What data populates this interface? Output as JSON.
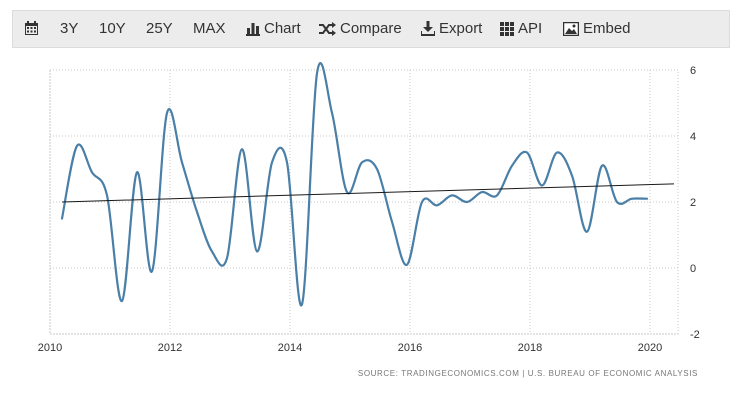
{
  "toolbar": {
    "calendar_icon": "calendar-icon",
    "range_3y": "3Y",
    "range_10y": "10Y",
    "range_25y": "25Y",
    "range_max": "MAX",
    "chart_label": "Chart",
    "compare_label": "Compare",
    "export_label": "Export",
    "api_label": "API",
    "embed_label": "Embed"
  },
  "colors": {
    "series": "#4a7fa8",
    "trend": "#1a1a1a",
    "grid": "#c8c8c8",
    "toolbar_bg": "#ececec"
  },
  "chart_data": {
    "type": "line",
    "title": "",
    "xlabel": "",
    "ylabel": "",
    "xlim": [
      2010,
      2020.5
    ],
    "ylim": [
      -2,
      6
    ],
    "x_ticks": [
      2010,
      2012,
      2014,
      2016,
      2018,
      2020
    ],
    "x_tick_labels": [
      "2010",
      "2012",
      "2014",
      "2016",
      "2018",
      "2020"
    ],
    "y_ticks": [
      -2,
      0,
      2,
      4,
      6
    ],
    "y_tick_labels": [
      "-2",
      "0",
      "2",
      "4",
      "6"
    ],
    "grid": true,
    "series": [
      {
        "name": "Series",
        "x": [
          2010.2,
          2010.45,
          2010.7,
          2010.95,
          2011.2,
          2011.45,
          2011.7,
          2011.95,
          2012.2,
          2012.45,
          2012.7,
          2012.95,
          2013.2,
          2013.45,
          2013.7,
          2013.95,
          2014.2,
          2014.45,
          2014.7,
          2014.95,
          2015.2,
          2015.45,
          2015.7,
          2015.95,
          2016.2,
          2016.45,
          2016.7,
          2016.95,
          2017.2,
          2017.45,
          2017.7,
          2017.95,
          2018.2,
          2018.45,
          2018.7,
          2018.95,
          2019.2,
          2019.45,
          2019.7,
          2019.95
        ],
        "values": [
          1.5,
          3.7,
          2.9,
          2.2,
          -1.0,
          2.9,
          -0.1,
          4.7,
          3.2,
          1.7,
          0.5,
          0.3,
          3.6,
          0.5,
          3.2,
          3.2,
          -1.1,
          5.9,
          4.7,
          2.3,
          3.2,
          3.0,
          1.4,
          0.1,
          2.0,
          1.9,
          2.2,
          2.0,
          2.3,
          2.2,
          3.1,
          3.5,
          2.5,
          3.5,
          2.8,
          1.1,
          3.1,
          2.0,
          2.1,
          2.1
        ]
      },
      {
        "name": "Trend",
        "x": [
          2010.2,
          2020.4
        ],
        "values": [
          2.0,
          2.55
        ]
      }
    ]
  },
  "source": {
    "text": "SOURCE: TRADINGECONOMICS.COM  |  U.S. BUREAU OF ECONOMIC ANALYSIS"
  }
}
